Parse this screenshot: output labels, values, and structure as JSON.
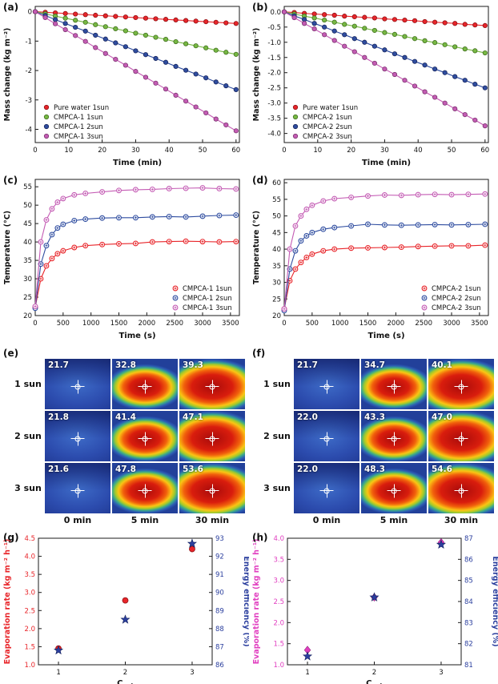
{
  "figure": {
    "letters": {
      "a": "(a)",
      "b": "(b)",
      "c": "(c)",
      "d": "(d)",
      "e": "(e)",
      "f": "(f)",
      "g": "(g)",
      "h": "(h)"
    }
  },
  "colors": {
    "red": "#e8252a",
    "green": "#77b843",
    "blue": "#2f4da0",
    "violet": "#c45cb4",
    "magenta": "#e13fc0",
    "navy": "#2b3f9e"
  },
  "chart_data": [
    {
      "mount": "chart-a",
      "type": "line",
      "title": "",
      "xlabel": "Time (min)",
      "ylabel": "Mass change (kg m⁻²)",
      "xlim": [
        0,
        61
      ],
      "ylim": [
        -4.45,
        0.18
      ],
      "xticks": [
        0,
        10,
        20,
        30,
        40,
        50,
        60
      ],
      "yticks": [
        0,
        -1,
        -2,
        -3,
        -4
      ],
      "xdec": 0,
      "ydec": 0,
      "m": {
        "l": 44,
        "r": 12,
        "t": 8,
        "b": 34
      },
      "legend": {
        "pos": "bl"
      },
      "series": [
        {
          "name": "Pure water 1sun",
          "marker": "dot",
          "color": "#e8252a",
          "edge": "#8f1114",
          "x": [
            0,
            3,
            6,
            9,
            12,
            15,
            18,
            21,
            24,
            27,
            30,
            33,
            36,
            39,
            42,
            45,
            48,
            51,
            54,
            57,
            60
          ],
          "y": [
            0,
            -0.02,
            -0.04,
            -0.06,
            -0.08,
            -0.1,
            -0.12,
            -0.14,
            -0.16,
            -0.18,
            -0.2,
            -0.22,
            -0.24,
            -0.26,
            -0.28,
            -0.3,
            -0.32,
            -0.34,
            -0.36,
            -0.38,
            -0.4
          ]
        },
        {
          "name": "CMPCA-1  1sun",
          "marker": "dot",
          "color": "#77b843",
          "edge": "#41701f",
          "x": [
            0,
            3,
            6,
            9,
            12,
            15,
            18,
            21,
            24,
            27,
            30,
            33,
            36,
            39,
            42,
            45,
            48,
            51,
            54,
            57,
            60
          ],
          "y": [
            0,
            -0.07,
            -0.15,
            -0.22,
            -0.29,
            -0.36,
            -0.44,
            -0.51,
            -0.58,
            -0.65,
            -0.73,
            -0.8,
            -0.87,
            -0.94,
            -1.02,
            -1.09,
            -1.16,
            -1.23,
            -1.31,
            -1.38,
            -1.45
          ]
        },
        {
          "name": "CMPCA-1  2sun",
          "marker": "dot",
          "color": "#2f4da0",
          "edge": "#17255c",
          "x": [
            0,
            3,
            6,
            9,
            12,
            15,
            18,
            21,
            24,
            27,
            30,
            33,
            36,
            39,
            42,
            45,
            48,
            51,
            54,
            57,
            60
          ],
          "y": [
            0,
            -0.13,
            -0.27,
            -0.4,
            -0.53,
            -0.66,
            -0.8,
            -0.93,
            -1.06,
            -1.19,
            -1.33,
            -1.46,
            -1.59,
            -1.72,
            -1.86,
            -1.99,
            -2.12,
            -2.25,
            -2.39,
            -2.52,
            -2.65
          ]
        },
        {
          "name": "CMPCA-1  3sun",
          "marker": "dot",
          "color": "#c45cb4",
          "edge": "#7c3370",
          "x": [
            0,
            3,
            6,
            9,
            12,
            15,
            18,
            21,
            24,
            27,
            30,
            33,
            36,
            39,
            42,
            45,
            48,
            51,
            54,
            57,
            60
          ],
          "y": [
            0,
            -0.2,
            -0.41,
            -0.61,
            -0.81,
            -1.01,
            -1.22,
            -1.42,
            -1.62,
            -1.82,
            -2.03,
            -2.23,
            -2.43,
            -2.63,
            -2.84,
            -3.04,
            -3.24,
            -3.44,
            -3.65,
            -3.85,
            -4.05
          ]
        }
      ]
    },
    {
      "mount": "chart-b",
      "type": "line",
      "title": "",
      "xlabel": "Time (min)",
      "ylabel": "Mass change (kg m⁻²)",
      "xlim": [
        0,
        61
      ],
      "ylim": [
        -4.3,
        0.18
      ],
      "xticks": [
        0,
        10,
        20,
        30,
        40,
        50,
        60
      ],
      "yticks": [
        0,
        -0.5,
        -1,
        -1.5,
        -2,
        -2.5,
        -3,
        -3.5,
        -4
      ],
      "xdec": 0,
      "ydec": 1,
      "m": {
        "l": 44,
        "r": 12,
        "t": 8,
        "b": 34
      },
      "legend": {
        "pos": "bl"
      },
      "series": [
        {
          "name": "Pure water 1sun",
          "marker": "dot",
          "color": "#e8252a",
          "edge": "#8f1114",
          "x": [
            0,
            3,
            6,
            9,
            12,
            15,
            18,
            21,
            24,
            27,
            30,
            33,
            36,
            39,
            42,
            45,
            48,
            51,
            54,
            57,
            60
          ],
          "y": [
            0,
            -0.02,
            -0.05,
            -0.07,
            -0.09,
            -0.11,
            -0.14,
            -0.16,
            -0.18,
            -0.2,
            -0.23,
            -0.25,
            -0.27,
            -0.29,
            -0.32,
            -0.34,
            -0.36,
            -0.38,
            -0.41,
            -0.43,
            -0.45
          ]
        },
        {
          "name": "CMPCA-2  1sun",
          "marker": "dot",
          "color": "#77b843",
          "edge": "#41701f",
          "x": [
            0,
            3,
            6,
            9,
            12,
            15,
            18,
            21,
            24,
            27,
            30,
            33,
            36,
            39,
            42,
            45,
            48,
            51,
            54,
            57,
            60
          ],
          "y": [
            0,
            -0.07,
            -0.14,
            -0.2,
            -0.27,
            -0.34,
            -0.41,
            -0.47,
            -0.54,
            -0.61,
            -0.68,
            -0.74,
            -0.81,
            -0.88,
            -0.95,
            -1.01,
            -1.08,
            -1.15,
            -1.22,
            -1.28,
            -1.35
          ]
        },
        {
          "name": "CMPCA-2  2sun",
          "marker": "dot",
          "color": "#2f4da0",
          "edge": "#17255c",
          "x": [
            0,
            3,
            6,
            9,
            12,
            15,
            18,
            21,
            24,
            27,
            30,
            33,
            36,
            39,
            42,
            45,
            48,
            51,
            54,
            57,
            60
          ],
          "y": [
            0,
            -0.13,
            -0.25,
            -0.38,
            -0.5,
            -0.63,
            -0.75,
            -0.88,
            -1.0,
            -1.13,
            -1.25,
            -1.38,
            -1.5,
            -1.63,
            -1.75,
            -1.88,
            -2.0,
            -2.13,
            -2.25,
            -2.38,
            -2.5
          ]
        },
        {
          "name": "CMPCA-2  3sun",
          "marker": "dot",
          "color": "#c45cb4",
          "edge": "#7c3370",
          "x": [
            0,
            3,
            6,
            9,
            12,
            15,
            18,
            21,
            24,
            27,
            30,
            33,
            36,
            39,
            42,
            45,
            48,
            51,
            54,
            57,
            60
          ],
          "y": [
            0,
            -0.19,
            -0.38,
            -0.56,
            -0.75,
            -0.94,
            -1.13,
            -1.31,
            -1.5,
            -1.69,
            -1.88,
            -2.06,
            -2.25,
            -2.44,
            -2.63,
            -2.81,
            -3.0,
            -3.19,
            -3.38,
            -3.56,
            -3.75
          ]
        }
      ]
    },
    {
      "mount": "chart-c",
      "type": "line",
      "title": "",
      "xlabel": "Time (s)",
      "ylabel": "Temperature (°C)",
      "xlim": [
        0,
        3660
      ],
      "ylim": [
        20,
        57
      ],
      "xticks": [
        0,
        500,
        1000,
        1500,
        2000,
        2500,
        3000,
        3500
      ],
      "yticks": [
        20,
        25,
        30,
        35,
        40,
        45,
        50,
        55
      ],
      "xdec": 0,
      "ydec": 0,
      "m": {
        "l": 44,
        "r": 12,
        "t": 8,
        "b": 34
      },
      "legend": {
        "pos": "br",
        "w": 80
      },
      "series": [
        {
          "name": "CMPCA-1 1sun",
          "marker": "oplus",
          "color": "#e8252a",
          "edge": "#8f1114",
          "x": [
            0,
            100,
            200,
            300,
            400,
            500,
            700,
            900,
            1200,
            1500,
            1800,
            2100,
            2400,
            2700,
            3000,
            3300,
            3600
          ],
          "y": [
            22.3,
            30.0,
            33.5,
            35.5,
            36.8,
            37.6,
            38.5,
            39.0,
            39.3,
            39.5,
            39.6,
            40.0,
            40.1,
            40.2,
            40.1,
            40.0,
            40.1
          ]
        },
        {
          "name": "CMPCA-1 2sun",
          "marker": "oplus",
          "color": "#2f4da0",
          "edge": "#17255c",
          "x": [
            0,
            100,
            200,
            300,
            400,
            500,
            700,
            900,
            1200,
            1500,
            1800,
            2100,
            2400,
            2700,
            3000,
            3300,
            3600
          ],
          "y": [
            22.0,
            34.0,
            39.0,
            42.0,
            43.8,
            44.8,
            45.8,
            46.2,
            46.5,
            46.6,
            46.6,
            46.8,
            46.9,
            46.8,
            47.0,
            47.2,
            47.3
          ]
        },
        {
          "name": "CMPCA-1 3sun",
          "marker": "oplus",
          "color": "#c45cb4",
          "edge": "#7c3370",
          "x": [
            0,
            100,
            200,
            300,
            400,
            500,
            700,
            900,
            1200,
            1500,
            1800,
            2100,
            2400,
            2700,
            3000,
            3300,
            3600
          ],
          "y": [
            22.5,
            40.0,
            46.0,
            49.0,
            50.8,
            51.8,
            52.8,
            53.2,
            53.6,
            54.0,
            54.2,
            54.3,
            54.5,
            54.6,
            54.7,
            54.5,
            54.4
          ]
        }
      ]
    },
    {
      "mount": "chart-d",
      "type": "line",
      "title": "",
      "xlabel": "Time (s)",
      "ylabel": "Temperature (°C)",
      "xlim": [
        0,
        3660
      ],
      "ylim": [
        20,
        61
      ],
      "xticks": [
        0,
        500,
        1000,
        1500,
        2000,
        2500,
        3000,
        3500
      ],
      "yticks": [
        20,
        25,
        30,
        35,
        40,
        45,
        50,
        55,
        60
      ],
      "xdec": 0,
      "ydec": 0,
      "m": {
        "l": 44,
        "r": 12,
        "t": 8,
        "b": 34
      },
      "legend": {
        "pos": "br",
        "w": 80
      },
      "series": [
        {
          "name": "CMPCA-2 1sun",
          "marker": "oplus",
          "color": "#e8252a",
          "edge": "#8f1114",
          "x": [
            0,
            100,
            200,
            300,
            400,
            500,
            700,
            900,
            1200,
            1500,
            1800,
            2100,
            2400,
            2700,
            3000,
            3300,
            3600
          ],
          "y": [
            22.0,
            30.5,
            34.0,
            36.0,
            37.5,
            38.5,
            39.5,
            40.0,
            40.3,
            40.4,
            40.5,
            40.6,
            40.8,
            40.9,
            41.0,
            41.0,
            41.2
          ]
        },
        {
          "name": "CMPCA-2 2sun",
          "marker": "oplus",
          "color": "#2f4da0",
          "edge": "#17255c",
          "x": [
            0,
            100,
            200,
            300,
            400,
            500,
            700,
            900,
            1200,
            1500,
            1800,
            2100,
            2400,
            2700,
            3000,
            3300,
            3600
          ],
          "y": [
            21.5,
            34.0,
            39.5,
            42.5,
            44.0,
            45.0,
            46.0,
            46.5,
            47.0,
            47.5,
            47.3,
            47.2,
            47.3,
            47.4,
            47.3,
            47.4,
            47.5
          ]
        },
        {
          "name": "CMPCA-2 3sun",
          "marker": "oplus",
          "color": "#c45cb4",
          "edge": "#7c3370",
          "x": [
            0,
            100,
            200,
            300,
            400,
            500,
            700,
            900,
            1200,
            1500,
            1800,
            2100,
            2400,
            2700,
            3000,
            3300,
            3600
          ],
          "y": [
            22.0,
            40.0,
            47.0,
            50.0,
            52.0,
            53.2,
            54.5,
            55.2,
            55.6,
            56.0,
            56.3,
            56.2,
            56.4,
            56.5,
            56.4,
            56.5,
            56.6
          ]
        }
      ]
    },
    {
      "mount": "chart-g",
      "type": "scatter",
      "title": "",
      "xlabel": "C_opt",
      "ylabel": "Evaporation rate (kg m⁻² h⁻¹)",
      "y2label": "Energy efficiency (%)",
      "xlim": [
        0.7,
        3.3
      ],
      "ylim": [
        1.0,
        4.5
      ],
      "y2lim": [
        86,
        93
      ],
      "xticks": [
        1,
        2,
        3
      ],
      "yticks": [
        1.0,
        1.5,
        2.0,
        2.5,
        3.0,
        3.5,
        4.0,
        4.5
      ],
      "y2ticks": [
        86,
        87,
        88,
        89,
        90,
        91,
        92,
        93
      ],
      "xdec": 0,
      "ydec": 1,
      "y2dec": 0,
      "leftColor": "#e8252a",
      "rightColor": "#2b3f9e",
      "m": {
        "l": 48,
        "r": 46,
        "t": 10,
        "b": 32
      },
      "series": [
        {
          "name": "Evaporation rate",
          "marker": "dot",
          "color": "#e8252a",
          "edge": "#8f1114",
          "msize": 1.3,
          "x": [
            1,
            2,
            3
          ],
          "y": [
            1.45,
            2.78,
            4.2
          ]
        },
        {
          "name": "Energy efficiency",
          "marker": "star",
          "color": "#2b3f9e",
          "edge": "#14205e",
          "msize": 1.1,
          "axis": "right",
          "x": [
            1,
            2,
            3
          ],
          "y": [
            86.8,
            88.5,
            92.7
          ]
        }
      ]
    },
    {
      "mount": "chart-h",
      "type": "scatter",
      "title": "",
      "xlabel": "C_opt",
      "ylabel": "Evaporation rate (kg m⁻² h⁻¹)",
      "y2label": "Energy efficiency (%)",
      "xlim": [
        0.7,
        3.3
      ],
      "ylim": [
        1.0,
        4.0
      ],
      "y2lim": [
        81,
        87
      ],
      "xticks": [
        1,
        2,
        3
      ],
      "yticks": [
        1.0,
        1.5,
        2.0,
        2.5,
        3.0,
        3.5,
        4.0
      ],
      "y2ticks": [
        81,
        82,
        83,
        84,
        85,
        86,
        87
      ],
      "xdec": 0,
      "ydec": 1,
      "y2dec": 0,
      "leftColor": "#e13fc0",
      "rightColor": "#2b3f9e",
      "m": {
        "l": 48,
        "r": 46,
        "t": 10,
        "b": 32
      },
      "series": [
        {
          "name": "Evaporation rate",
          "marker": "diamond",
          "color": "#e13fc0",
          "edge": "#8f1f7a",
          "msize": 1.2,
          "x": [
            1,
            2,
            3
          ],
          "y": [
            1.35,
            2.6,
            3.9
          ]
        },
        {
          "name": "Energy efficiency",
          "marker": "star",
          "color": "#2b3f9e",
          "edge": "#14205e",
          "msize": 1.1,
          "axis": "right",
          "x": [
            1,
            2,
            3
          ],
          "y": [
            81.4,
            84.2,
            86.7
          ]
        }
      ]
    }
  ],
  "thermal": {
    "e": {
      "row_labels": [
        "1 sun",
        "2 sun",
        "3 sun"
      ],
      "col_labels": [
        "0 min",
        "5 min",
        "30 min"
      ],
      "temps": [
        [
          "21.7",
          "32.8",
          "39.3"
        ],
        [
          "21.8",
          "41.4",
          "47.1"
        ],
        [
          "21.6",
          "47.8",
          "53.6"
        ]
      ]
    },
    "f": {
      "row_labels": [
        "1 sun",
        "2 sun",
        "3 sun"
      ],
      "col_labels": [
        "0 min",
        "5 min",
        "30 min"
      ],
      "temps": [
        [
          "21.7",
          "34.7",
          "40.1"
        ],
        [
          "22.0",
          "43.3",
          "47.0"
        ],
        [
          "22.0",
          "48.3",
          "54.6"
        ]
      ]
    }
  }
}
